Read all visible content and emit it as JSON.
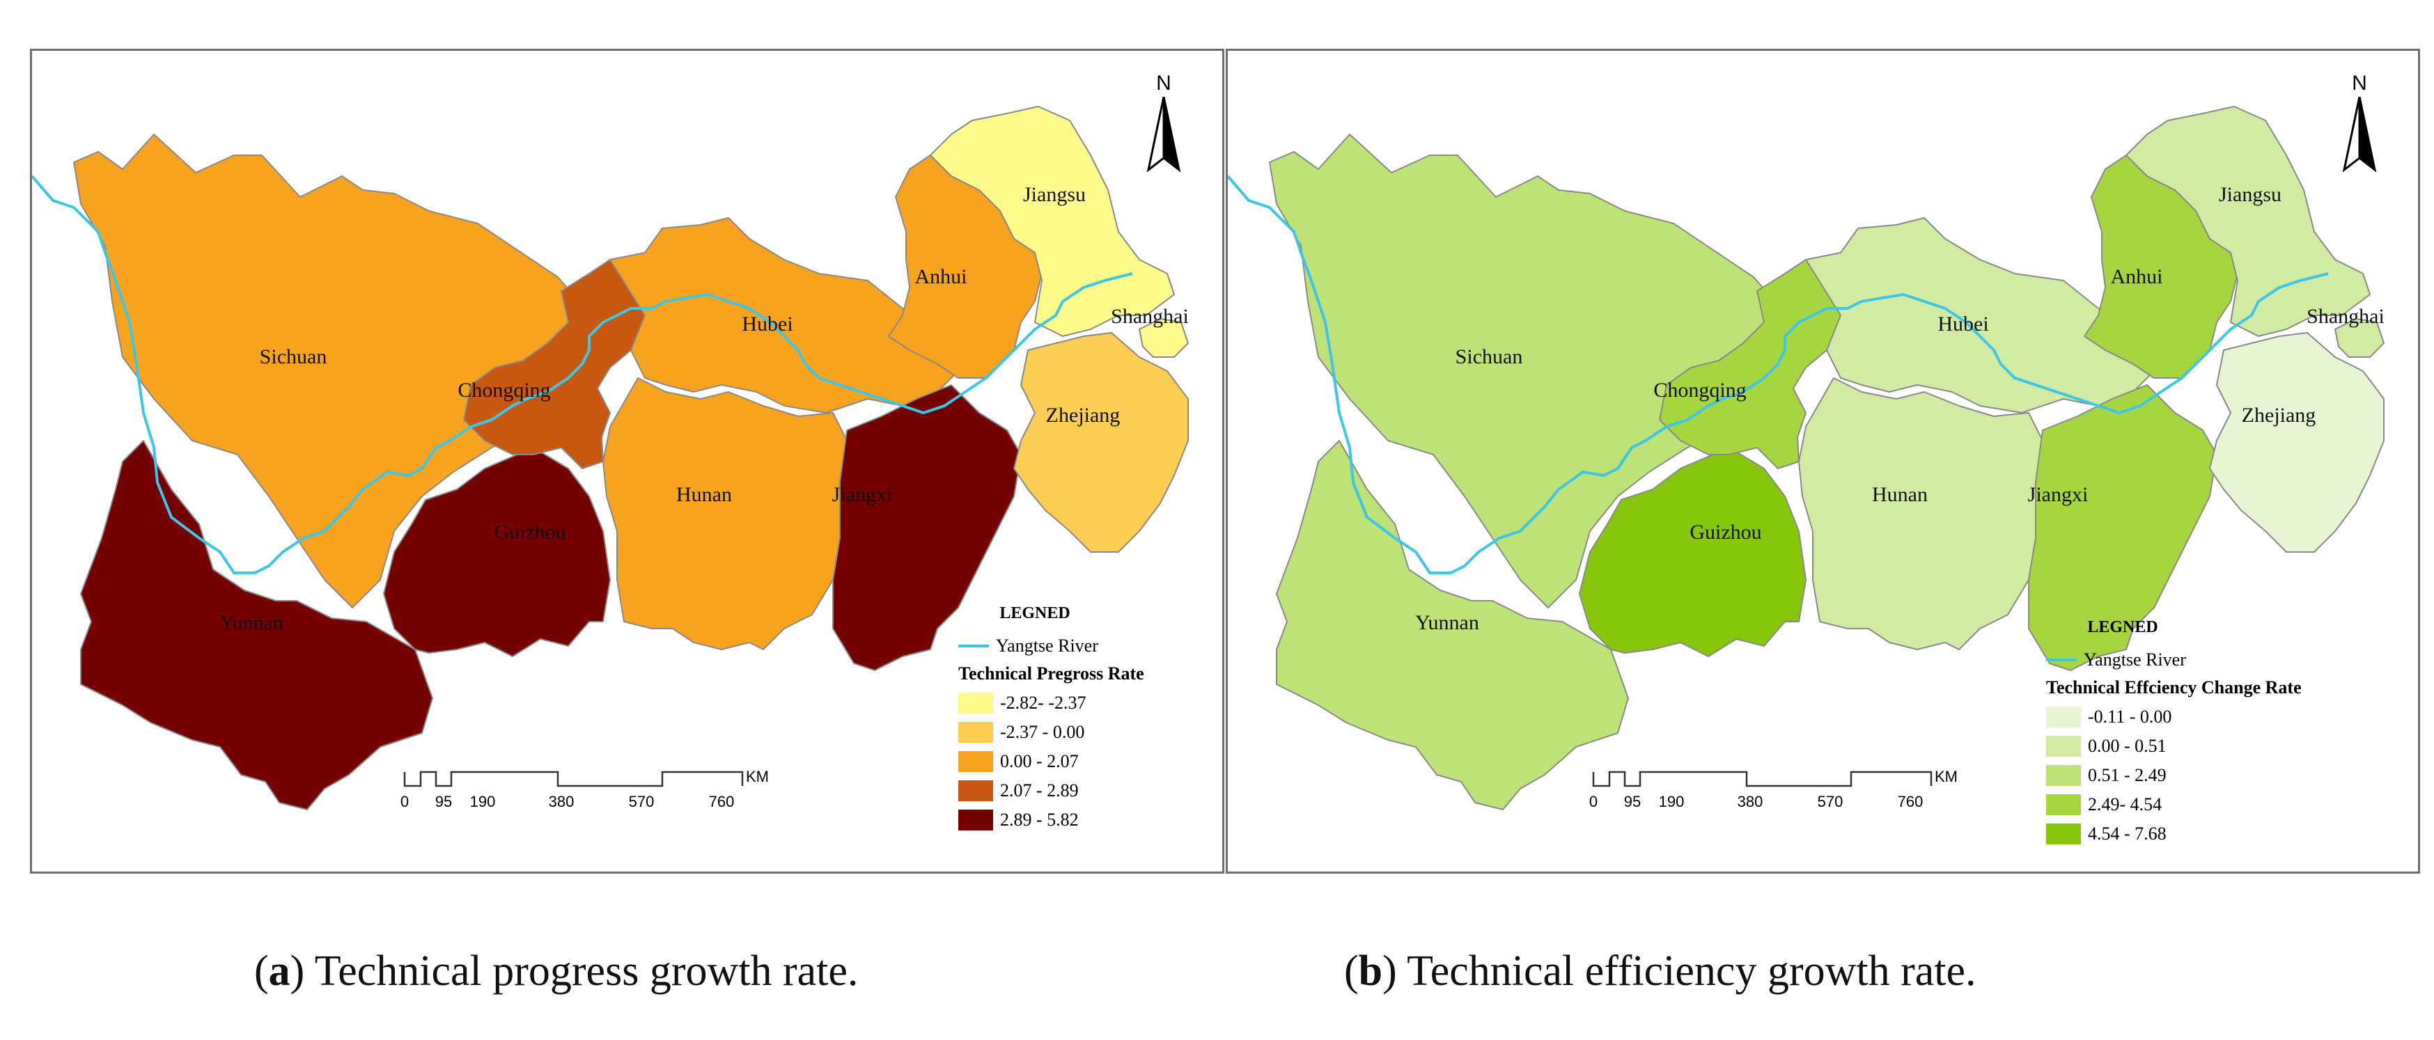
{
  "river_color": "#3cc6e8",
  "border_color": "#8a8a8a",
  "panels": {
    "a": {
      "north": "N",
      "legend_title": "LEGNED",
      "river_label": "Yangtse River",
      "class_title": "Technical Pregross Rate",
      "classes": [
        {
          "label": "-2.82- -2.37",
          "color": "#fffb8a"
        },
        {
          "label": "-2.37 - 0.00",
          "color": "#fccd53"
        },
        {
          "label": "0.00 - 2.07",
          "color": "#f8a31e"
        },
        {
          "label": "2.07 - 2.89",
          "color": "#c8580f"
        },
        {
          "label": "2.89 - 5.82",
          "color": "#740000"
        }
      ],
      "regions": {
        "sichuan": {
          "name": "Sichuan",
          "class": 2
        },
        "yunnan": {
          "name": "Yunnan",
          "class": 4
        },
        "guizhou": {
          "name": "Guizhou",
          "class": 4
        },
        "chongqing": {
          "name": "Chongqing",
          "class": 3
        },
        "hubei": {
          "name": "Hubei",
          "class": 2
        },
        "hunan": {
          "name": "Hunan",
          "class": 2
        },
        "jiangxi": {
          "name": "Jiangxi",
          "class": 4
        },
        "anhui": {
          "name": "Anhui",
          "class": 2
        },
        "jiangsu": {
          "name": "Jiangsu",
          "class": 0
        },
        "shanghai": {
          "name": "Shanghai",
          "class": 0
        },
        "zhejiang": {
          "name": "Zhejiang",
          "class": 1
        }
      },
      "scale": {
        "ticks": [
          "0",
          "95",
          "190",
          "380",
          "570",
          "760"
        ],
        "unit": "KM"
      },
      "caption_letter": "a",
      "caption_text": " Technical progress growth rate."
    },
    "b": {
      "north": "N",
      "legend_title": "LEGNED",
      "river_label": "Yangtse River",
      "class_title": "Technical Effciency Change Rate",
      "classes": [
        {
          "label": "-0.11 - 0.00",
          "color": "#e8f5d2"
        },
        {
          "label": "0.00 - 0.51",
          "color": "#d2eba3"
        },
        {
          "label": "0.51 - 2.49",
          "color": "#bde275"
        },
        {
          "label": "2.49- 4.54",
          "color": "#a6d63f"
        },
        {
          "label": "4.54 - 7.68",
          "color": "#86c70c"
        }
      ],
      "regions": {
        "sichuan": {
          "name": "Sichuan",
          "class": 2
        },
        "yunnan": {
          "name": "Yunnan",
          "class": 2
        },
        "guizhou": {
          "name": "Guizhou",
          "class": 4
        },
        "chongqing": {
          "name": "Chongqing",
          "class": 3
        },
        "hubei": {
          "name": "Hubei",
          "class": 1
        },
        "hunan": {
          "name": "Hunan",
          "class": 1
        },
        "jiangxi": {
          "name": "Jiangxi",
          "class": 3
        },
        "anhui": {
          "name": "Anhui",
          "class": 3
        },
        "jiangsu": {
          "name": "Jiangsu",
          "class": 1
        },
        "shanghai": {
          "name": "Shanghai",
          "class": 1
        },
        "zhejiang": {
          "name": "Zhejiang",
          "class": 0
        }
      },
      "scale": {
        "ticks": [
          "0",
          "95",
          "190",
          "380",
          "570",
          "760"
        ],
        "unit": "KM"
      },
      "caption_letter": "b",
      "caption_text": " Technical efficiency growth rate."
    }
  }
}
